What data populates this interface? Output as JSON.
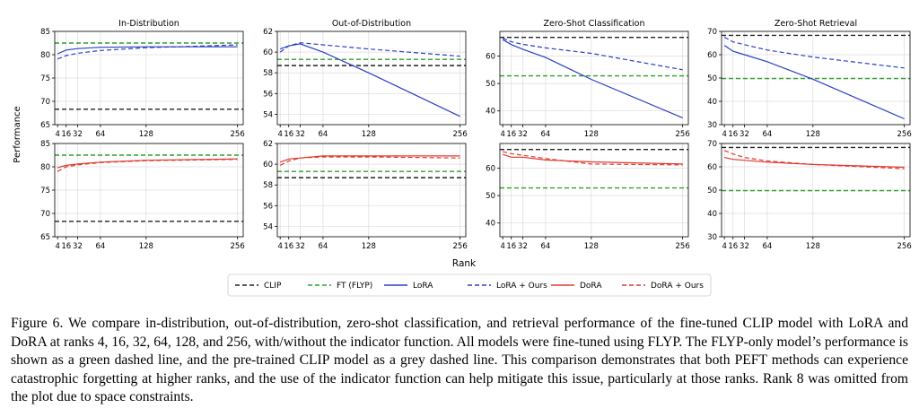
{
  "figure": {
    "ylabel": "Performance",
    "xlabel": "Rank",
    "caption": "Figure 6. We compare in-distribution, out-of-distribution, zero-shot classification, and retrieval performance of the fine-tuned CLIP model with LoRA and DoRA at ranks 4, 16, 32, 64, 128, and 256, with/without the indicator function. All models were fine-tuned using FLYP. The FLYP-only model’s performance is shown as a green dashed line, and the pre-trained CLIP model as a grey dashed line. This comparison demonstrates that both PEFT methods can experience catastrophic forgetting at higher ranks, and the use of the indicator function can help mitigate this issue, particularly at those ranks. Rank 8 was omitted from the plot due to space constraints.",
    "legend": [
      {
        "label": "CLIP",
        "color": "#222222",
        "dash": true
      },
      {
        "label": "FT (FLYP)",
        "color": "#2ca02c",
        "dash": true
      },
      {
        "label": "LoRA",
        "color": "#2b3fc4",
        "dash": false
      },
      {
        "label": "LoRA + Ours",
        "color": "#2b3fc4",
        "dash": true
      },
      {
        "label": "DoRA",
        "color": "#e03a2f",
        "dash": false
      },
      {
        "label": "DoRA + Ours",
        "color": "#e03a2f",
        "dash": true
      }
    ]
  },
  "chart_data": [
    {
      "type": "line",
      "title": "In-Distribution",
      "row": 0,
      "col": 0,
      "x": [
        4,
        16,
        32,
        64,
        128,
        256
      ],
      "xticks": [
        4,
        16,
        32,
        64,
        128,
        256
      ],
      "ylim": [
        65,
        85
      ],
      "yticks": [
        65,
        70,
        75,
        80,
        85
      ],
      "clip": 68.3,
      "flyp": 82.5,
      "series": [
        {
          "name": "LoRA",
          "color": "#2b3fc4",
          "dash": false,
          "values": [
            80.2,
            81.0,
            81.3,
            81.6,
            81.7,
            81.7
          ]
        },
        {
          "name": "LoRA + Ours",
          "color": "#2b3fc4",
          "dash": true,
          "values": [
            79.1,
            79.8,
            80.3,
            80.9,
            81.5,
            82.1
          ]
        }
      ]
    },
    {
      "type": "line",
      "title": "Out-of-Distribution",
      "row": 0,
      "col": 1,
      "x": [
        4,
        16,
        32,
        64,
        128,
        256
      ],
      "xticks": [
        4,
        16,
        32,
        64,
        128,
        256
      ],
      "ylim": [
        53,
        62
      ],
      "yticks": [
        54,
        56,
        58,
        60,
        62
      ],
      "clip": 58.7,
      "flyp": 59.3,
      "series": [
        {
          "name": "LoRA",
          "color": "#2b3fc4",
          "dash": false,
          "values": [
            60.3,
            60.6,
            60.8,
            60.0,
            58.0,
            53.8
          ]
        },
        {
          "name": "LoRA + Ours",
          "color": "#2b3fc4",
          "dash": true,
          "values": [
            60.0,
            60.6,
            60.9,
            60.7,
            60.3,
            59.6
          ]
        }
      ]
    },
    {
      "type": "line",
      "title": "Zero-Shot Classification",
      "row": 0,
      "col": 2,
      "x": [
        4,
        16,
        32,
        64,
        128,
        256
      ],
      "xticks": [
        4,
        16,
        32,
        64,
        128,
        256
      ],
      "ylim": [
        35,
        69
      ],
      "yticks": [
        40,
        50,
        60
      ],
      "clip": 66.8,
      "flyp": 52.8,
      "series": [
        {
          "name": "LoRA",
          "color": "#2b3fc4",
          "dash": false,
          "values": [
            66.0,
            64.2,
            62.5,
            59.5,
            51.5,
            37.5
          ]
        },
        {
          "name": "LoRA + Ours",
          "color": "#2b3fc4",
          "dash": true,
          "values": [
            66.5,
            65.2,
            64.3,
            63.0,
            61.0,
            55.0
          ]
        }
      ]
    },
    {
      "type": "line",
      "title": "Zero-Shot Retrieval",
      "row": 0,
      "col": 3,
      "x": [
        4,
        16,
        32,
        64,
        128,
        256
      ],
      "xticks": [
        4,
        16,
        32,
        64,
        128,
        256
      ],
      "ylim": [
        30,
        70
      ],
      "yticks": [
        30,
        40,
        50,
        60,
        70
      ],
      "clip": 68.3,
      "flyp": 49.8,
      "series": [
        {
          "name": "LoRA",
          "color": "#2b3fc4",
          "dash": false,
          "values": [
            64.0,
            61.5,
            60.0,
            57.0,
            49.5,
            32.5
          ]
        },
        {
          "name": "LoRA + Ours",
          "color": "#2b3fc4",
          "dash": true,
          "values": [
            67.5,
            65.5,
            64.3,
            62.0,
            59.0,
            54.3
          ]
        }
      ]
    },
    {
      "type": "line",
      "title": "",
      "row": 1,
      "col": 0,
      "x": [
        4,
        16,
        32,
        64,
        128,
        256
      ],
      "xticks": [
        4,
        16,
        32,
        64,
        128,
        256
      ],
      "ylim": [
        65,
        85
      ],
      "yticks": [
        65,
        70,
        75,
        80,
        85
      ],
      "clip": 68.3,
      "flyp": 82.5,
      "series": [
        {
          "name": "DoRA",
          "color": "#e03a2f",
          "dash": false,
          "values": [
            79.8,
            80.3,
            80.6,
            81.0,
            81.4,
            81.7
          ]
        },
        {
          "name": "DoRA + Ours",
          "color": "#e03a2f",
          "dash": true,
          "values": [
            79.0,
            80.0,
            80.4,
            80.9,
            81.3,
            81.6
          ]
        }
      ]
    },
    {
      "type": "line",
      "title": "",
      "row": 1,
      "col": 1,
      "x": [
        4,
        16,
        32,
        64,
        128,
        256
      ],
      "xticks": [
        4,
        16,
        32,
        64,
        128,
        256
      ],
      "ylim": [
        53,
        62
      ],
      "yticks": [
        54,
        56,
        58,
        60,
        62
      ],
      "clip": 58.7,
      "flyp": 59.3,
      "series": [
        {
          "name": "DoRA",
          "color": "#e03a2f",
          "dash": false,
          "values": [
            60.2,
            60.5,
            60.6,
            60.8,
            60.8,
            60.8
          ]
        },
        {
          "name": "DoRA + Ours",
          "color": "#e03a2f",
          "dash": true,
          "values": [
            59.9,
            60.3,
            60.6,
            60.7,
            60.7,
            60.6
          ]
        }
      ]
    },
    {
      "type": "line",
      "title": "",
      "row": 1,
      "col": 2,
      "x": [
        4,
        16,
        32,
        64,
        128,
        256
      ],
      "xticks": [
        4,
        16,
        32,
        64,
        128,
        256
      ],
      "ylim": [
        35,
        69
      ],
      "yticks": [
        40,
        50,
        60
      ],
      "clip": 66.8,
      "flyp": 52.8,
      "series": [
        {
          "name": "DoRA",
          "color": "#e03a2f",
          "dash": false,
          "values": [
            65.0,
            64.0,
            64.0,
            63.0,
            62.3,
            61.5
          ]
        },
        {
          "name": "DoRA + Ours",
          "color": "#e03a2f",
          "dash": true,
          "values": [
            66.0,
            65.3,
            64.7,
            63.5,
            61.5,
            61.2
          ]
        }
      ]
    },
    {
      "type": "line",
      "title": "",
      "row": 1,
      "col": 3,
      "x": [
        4,
        16,
        32,
        64,
        128,
        256
      ],
      "xticks": [
        4,
        16,
        32,
        64,
        128,
        256
      ],
      "ylim": [
        30,
        70
      ],
      "yticks": [
        30,
        40,
        50,
        60,
        70
      ],
      "clip": 68.3,
      "flyp": 49.8,
      "series": [
        {
          "name": "DoRA",
          "color": "#e03a2f",
          "dash": false,
          "values": [
            64.0,
            63.2,
            62.8,
            62.0,
            61.0,
            59.8
          ]
        },
        {
          "name": "DoRA + Ours",
          "color": "#e03a2f",
          "dash": true,
          "values": [
            67.0,
            65.5,
            64.0,
            62.5,
            61.0,
            59.2
          ]
        }
      ]
    }
  ]
}
